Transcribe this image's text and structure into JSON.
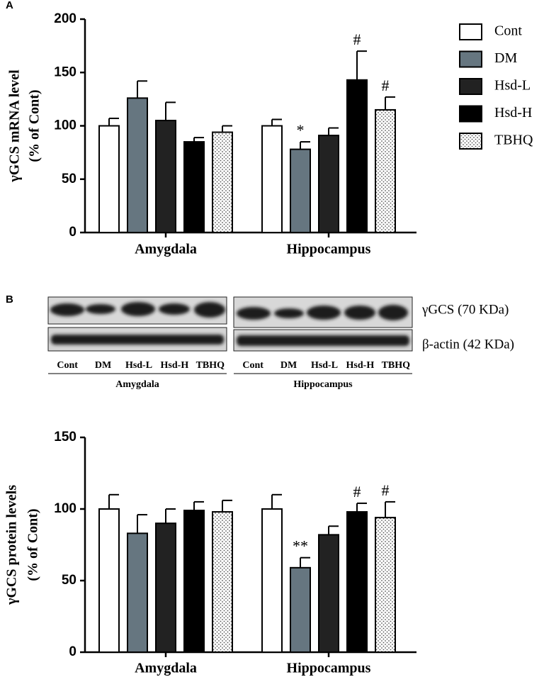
{
  "chart_data": [
    {
      "type": "bar",
      "panel": "A",
      "y_label": [
        "γGCS mRNA level",
        "(% of Cont)"
      ],
      "categories": [
        "Amygdala",
        "Hippocampus"
      ],
      "ylim": [
        0,
        200
      ],
      "yticks": [
        0,
        50,
        100,
        150,
        200
      ],
      "legend": "right",
      "series": [
        {
          "name": "Cont",
          "color": "#ffffff",
          "values": [
            100,
            100
          ],
          "errors": [
            7,
            6
          ],
          "annotations": [
            null,
            null
          ]
        },
        {
          "name": "DM",
          "color": "#667680",
          "values": [
            126,
            78
          ],
          "errors": [
            16,
            7
          ],
          "annotations": [
            null,
            "*"
          ]
        },
        {
          "name": "Hsd-L",
          "color": "#222222",
          "values": [
            105,
            91
          ],
          "errors": [
            17,
            7
          ],
          "annotations": [
            null,
            null
          ]
        },
        {
          "name": "Hsd-H",
          "color": "#000000",
          "values": [
            85,
            143
          ],
          "errors": [
            4,
            27
          ],
          "annotations": [
            null,
            "#"
          ]
        },
        {
          "name": "TBHQ",
          "color": "#ffffff",
          "pattern": "dots",
          "values": [
            94,
            115
          ],
          "errors": [
            6,
            12
          ],
          "annotations": [
            null,
            "#"
          ]
        }
      ]
    },
    {
      "type": "bar",
      "y_label": [
        "γGCS protein levels",
        "(% of Cont)"
      ],
      "categories": [
        "Amygdala",
        "Hippocampus"
      ],
      "ylim": [
        0,
        150
      ],
      "yticks": [
        0,
        50,
        100,
        150
      ],
      "series": [
        {
          "color": "#ffffff",
          "values": [
            100,
            100
          ],
          "errors": [
            10,
            10
          ],
          "annotations": [
            null,
            null
          ]
        },
        {
          "color": "#667680",
          "values": [
            83,
            59
          ],
          "errors": [
            13,
            7
          ],
          "annotations": [
            null,
            "**"
          ]
        },
        {
          "color": "#222222",
          "values": [
            90,
            82
          ],
          "errors": [
            10,
            6
          ],
          "annotations": [
            null,
            null
          ]
        },
        {
          "color": "#000000",
          "values": [
            99,
            98
          ],
          "errors": [
            6,
            6
          ],
          "annotations": [
            null,
            "#"
          ]
        },
        {
          "color": "#ffffff",
          "pattern": "dots",
          "values": [
            98,
            94
          ],
          "errors": [
            8,
            11
          ],
          "annotations": [
            null,
            "#"
          ]
        }
      ]
    }
  ],
  "blot": {
    "panel": "B",
    "bands": [
      "γGCS (70 KDa)",
      "β-actin (42 KDa)"
    ],
    "groups": [
      {
        "name": "Amygdala",
        "lanes": [
          "Cont",
          "DM",
          "Hsd-L",
          "Hsd-H",
          "TBHQ"
        ]
      },
      {
        "name": "Hippocampus",
        "lanes": [
          "Cont",
          "DM",
          "Hsd-L",
          "Hsd-H",
          "TBHQ"
        ]
      }
    ]
  }
}
